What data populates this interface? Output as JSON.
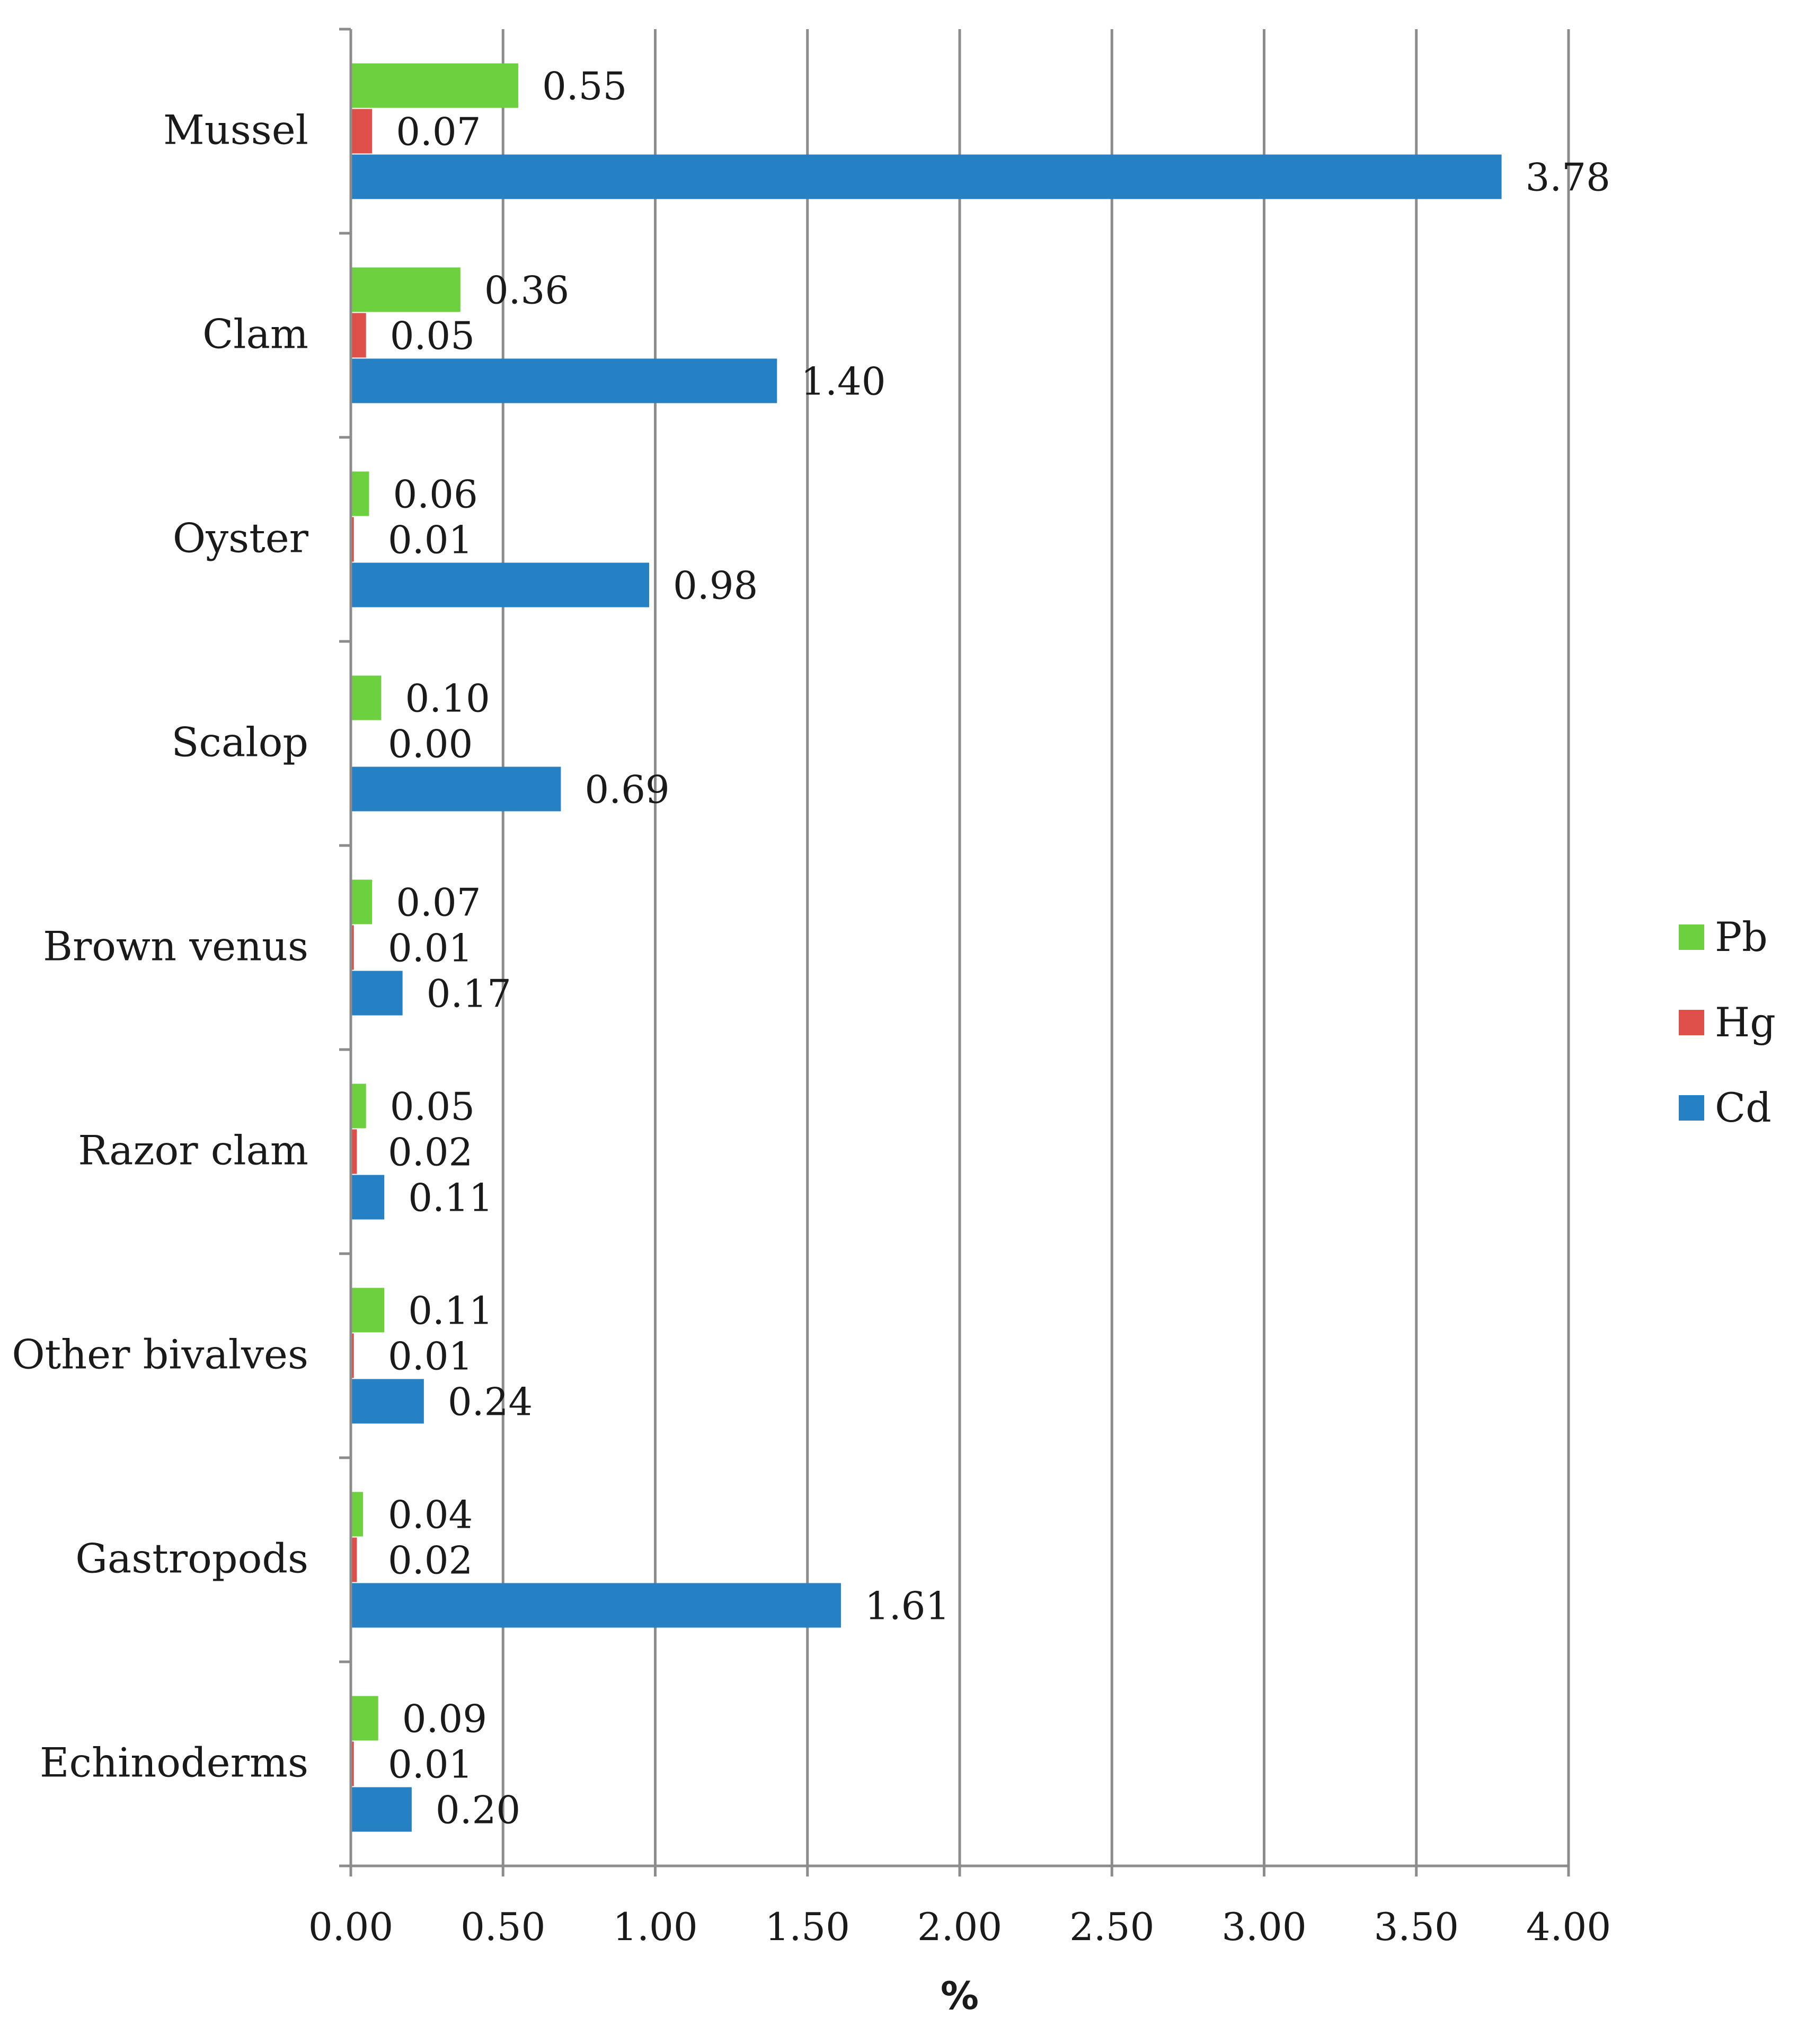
{
  "chart_data": {
    "type": "bar",
    "orientation": "horizontal",
    "title": "",
    "xlabel": "%",
    "ylabel": "",
    "xlim": [
      0,
      4
    ],
    "x_ticks": [
      "0.00",
      "0.50",
      "1.00",
      "1.50",
      "2.00",
      "2.50",
      "3.00",
      "3.50",
      "4.00"
    ],
    "grid": "vertical",
    "legend_position": "right",
    "categories": [
      "Mussel",
      "Clam",
      "Oyster",
      "Scalop",
      "Brown venus",
      "Razor clam",
      "Other bivalves",
      "Gastropods",
      "Echinoderms"
    ],
    "series": [
      {
        "name": "Pb",
        "color": "#6dd13f",
        "values": [
          0.55,
          0.36,
          0.06,
          0.1,
          0.07,
          0.05,
          0.11,
          0.04,
          0.09
        ],
        "labels": [
          "0.55",
          "0.36",
          "0.06",
          "0.10",
          "0.07",
          "0.05",
          "0.11",
          "0.04",
          "0.09"
        ]
      },
      {
        "name": "Hg",
        "color": "#e0504a",
        "values": [
          0.07,
          0.05,
          0.01,
          0.0,
          0.01,
          0.02,
          0.01,
          0.02,
          0.01
        ],
        "labels": [
          "0.07",
          "0.05",
          "0.01",
          "0.00",
          "0.01",
          "0.02",
          "0.01",
          "0.02",
          "0.01"
        ]
      },
      {
        "name": "Cd",
        "color": "#2581c4",
        "values": [
          3.78,
          1.4,
          0.98,
          0.69,
          0.17,
          0.11,
          0.24,
          1.61,
          0.2
        ],
        "labels": [
          "3.78",
          "1.40",
          "0.98",
          "0.69",
          "0.17",
          "0.11",
          "0.24",
          "1.61",
          "0.20"
        ]
      }
    ],
    "legend_order": [
      "Pb",
      "Hg",
      "Cd"
    ]
  }
}
